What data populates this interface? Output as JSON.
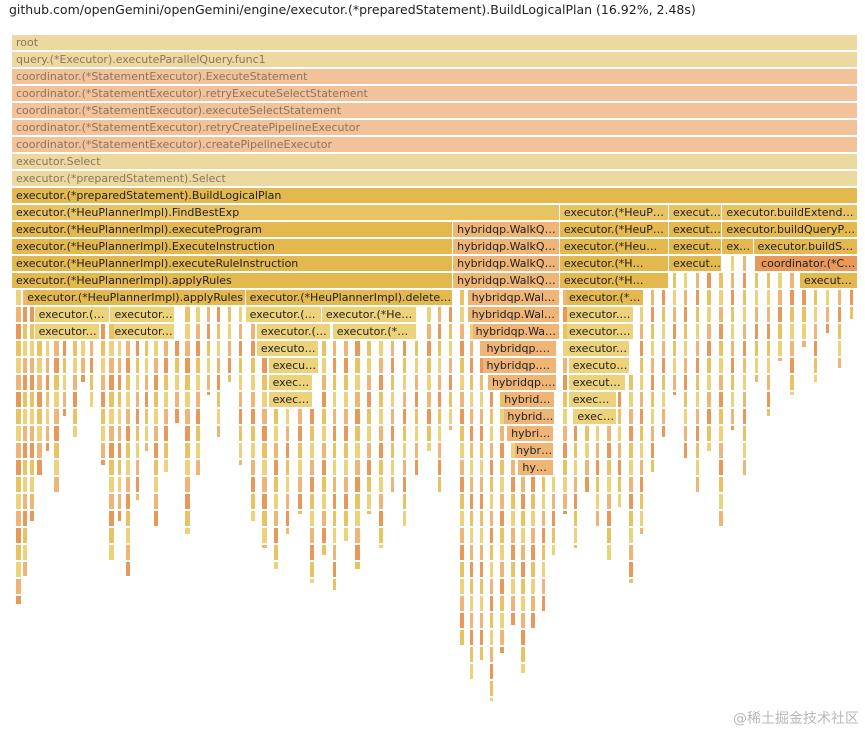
{
  "header": {
    "title": "github.com/openGemini/openGemini/engine/executor.(*preparedStatement).BuildLogicalPlan (16.92%, 2.48s)"
  },
  "colors": {
    "ghost_tan": "#ecd9a0",
    "ghost_salmon": "#f2c29a",
    "gold": "#e3b84f",
    "gold_light": "#e8c364",
    "gold_pale": "#ecd27b",
    "orange": "#e8995a",
    "orange_light": "#efb577",
    "tan": "#e9c079"
  },
  "chart_data": {
    "type": "flamegraph",
    "title": "github.com/openGemini/openGemini/engine/executor.(*preparedStatement).BuildLogicalPlan (16.92%, 2.48s)",
    "total_time": "2.48s",
    "focus_percent": 16.92,
    "units": "fraction of root width",
    "frames": [
      {
        "depth": 0,
        "start": 0,
        "width": 1.0,
        "label": "root",
        "kind": "ghost_tan"
      },
      {
        "depth": 1,
        "start": 0,
        "width": 1.0,
        "label": "query.(*Executor).executeParallelQuery.func1",
        "kind": "ghost_tan"
      },
      {
        "depth": 2,
        "start": 0,
        "width": 1.0,
        "label": "coordinator.(*StatementExecutor).ExecuteStatement",
        "kind": "ghost_salmon"
      },
      {
        "depth": 3,
        "start": 0,
        "width": 1.0,
        "label": "coordinator.(*StatementExecutor).retryExecuteSelectStatement",
        "kind": "ghost_salmon"
      },
      {
        "depth": 4,
        "start": 0,
        "width": 1.0,
        "label": "coordinator.(*StatementExecutor).executeSelectStatement",
        "kind": "ghost_salmon"
      },
      {
        "depth": 5,
        "start": 0,
        "width": 1.0,
        "label": "coordinator.(*StatementExecutor).retryCreatePipelineExecutor",
        "kind": "ghost_salmon"
      },
      {
        "depth": 6,
        "start": 0,
        "width": 1.0,
        "label": "coordinator.(*StatementExecutor).createPipelineExecutor",
        "kind": "ghost_salmon"
      },
      {
        "depth": 7,
        "start": 0,
        "width": 1.0,
        "label": "executor.Select",
        "kind": "ghost_tan"
      },
      {
        "depth": 8,
        "start": 0,
        "width": 1.0,
        "label": "executor.(*preparedStatement).Select",
        "kind": "ghost_tan"
      },
      {
        "depth": 9,
        "start": 0,
        "width": 1.0,
        "label": "executor.(*preparedStatement).BuildLogicalPlan",
        "kind": "gold"
      },
      {
        "depth": 10,
        "start": 0.0,
        "width": 0.6476,
        "label": "executor.(*HeuPlannerImpl).FindBestExp",
        "kind": "gold_light"
      },
      {
        "depth": 10,
        "start": 0.6476,
        "width": 0.129,
        "label": "executor.(*HeuP…",
        "kind": "gold_light"
      },
      {
        "depth": 10,
        "start": 0.7766,
        "width": 0.0631,
        "label": "executor.(*HeuPlannerImpl).FindBestExp",
        "kind": "gold_light"
      },
      {
        "depth": 10,
        "start": 0.8397,
        "width": 0.1603,
        "label": "executor.buildExtendedExpr",
        "kind": "gold_light"
      },
      {
        "depth": 11,
        "start": 0.0,
        "width": 0.5214,
        "label": "executor.(*HeuPlannerImpl).executeProgram",
        "kind": "gold"
      },
      {
        "depth": 11,
        "start": 0.5214,
        "width": 0.1262,
        "label": "hybridqp.WalkQueryNodeInPreOrder",
        "kind": "orange_light"
      },
      {
        "depth": 11,
        "start": 0.6476,
        "width": 0.129,
        "label": "executor.(*HeuP…",
        "kind": "gold"
      },
      {
        "depth": 11,
        "start": 0.7766,
        "width": 0.0631,
        "label": "executor.(*HeuPlannerImpl).executeProgram",
        "kind": "gold"
      },
      {
        "depth": 11,
        "start": 0.8397,
        "width": 0.1603,
        "label": "executor.buildQueryPlan",
        "kind": "gold"
      },
      {
        "depth": 12,
        "start": 0.0,
        "width": 0.5214,
        "label": "executor.(*HeuPlannerImpl).ExecuteInstruction",
        "kind": "gold"
      },
      {
        "depth": 12,
        "start": 0.5214,
        "width": 0.1262,
        "label": "hybridqp.WalkQueryNodeInPreOrder",
        "kind": "orange_light"
      },
      {
        "depth": 12,
        "start": 0.6476,
        "width": 0.129,
        "label": "executor.(*Heu…",
        "kind": "gold"
      },
      {
        "depth": 12,
        "start": 0.7766,
        "width": 0.0631,
        "label": "executor.(*HeuPlannerImpl).ExecuteInstruction",
        "kind": "gold"
      },
      {
        "depth": 12,
        "start": 0.8397,
        "width": 0.0368,
        "label": "executor.buildSources",
        "kind": "gold"
      },
      {
        "depth": 12,
        "start": 0.8765,
        "width": 0.1235,
        "label": "executor.buildSources",
        "kind": "gold"
      },
      {
        "depth": 13,
        "start": 0.0,
        "width": 0.5214,
        "label": "executor.(*HeuPlannerImpl).executeRuleInstruction",
        "kind": "gold"
      },
      {
        "depth": 13,
        "start": 0.5214,
        "width": 0.1262,
        "label": "hybridqp.WalkQueryNodeInPreOrder",
        "kind": "orange_light"
      },
      {
        "depth": 13,
        "start": 0.6476,
        "width": 0.129,
        "label": "executor.(*H…",
        "kind": "gold"
      },
      {
        "depth": 13,
        "start": 0.7766,
        "width": 0.0631,
        "label": "executor.(*HeuPlannerImpl).executeRuleInstruction",
        "kind": "gold"
      },
      {
        "depth": 13,
        "start": 0.8807,
        "width": 0.1193,
        "label": "coordinator.(*ClusterShardMapper).MapShards",
        "kind": "orange"
      },
      {
        "depth": 14,
        "start": 0.0,
        "width": 0.5214,
        "label": "executor.(*HeuPlannerImpl).applyRules",
        "kind": "gold"
      },
      {
        "depth": 14,
        "start": 0.5214,
        "width": 0.1262,
        "label": "hybridqp.WalkQueryNodeInPreOrder",
        "kind": "orange_light"
      },
      {
        "depth": 14,
        "start": 0.6476,
        "width": 0.129,
        "label": "executor.(*H…",
        "kind": "gold"
      },
      {
        "depth": 14,
        "start": 0.9315,
        "width": 0.0685,
        "label": "executor.buildSources",
        "kind": "gold"
      },
      {
        "depth": 15,
        "start": 0.0133,
        "width": 0.2629,
        "label": "executor.(*HeuPlannerImpl).applyRules",
        "kind": "gold"
      },
      {
        "depth": 15,
        "start": 0.2762,
        "width": 0.2452,
        "label": "executor.(*HeuPlannerImpl).deleteNode",
        "kind": "gold"
      },
      {
        "depth": 15,
        "start": 0.5385,
        "width": 0.1091,
        "label": "hybridqp.WalkQueryNodeInPreOrder",
        "kind": "orange_light"
      },
      {
        "depth": 15,
        "start": 0.6536,
        "width": 0.094,
        "label": "executor.(*…",
        "kind": "gold"
      },
      {
        "depth": 16,
        "start": 0.0267,
        "width": 0.0897,
        "label": "executor.(*HeuPlannerImpl).applyRules",
        "kind": "gold_pale"
      },
      {
        "depth": 16,
        "start": 0.1164,
        "width": 0.0768,
        "label": "executor.(*HeuPlannerImpl).applyRules",
        "kind": "gold_pale"
      },
      {
        "depth": 16,
        "start": 0.2762,
        "width": 0.0901,
        "label": "executor.(*HeuPlannerImpl).deleteNode",
        "kind": "gold_pale"
      },
      {
        "depth": 16,
        "start": 0.3663,
        "width": 0.1122,
        "label": "executor.(*HeuPlannerImpl).deleteNode",
        "kind": "gold_pale"
      },
      {
        "depth": 16,
        "start": 0.5385,
        "width": 0.1091,
        "label": "hybridqp.WalkQueryNodeInPreOrder",
        "kind": "orange_light"
      },
      {
        "depth": 16,
        "start": 0.6536,
        "width": 0.0812,
        "label": "executor.(*…",
        "kind": "gold_pale"
      },
      {
        "depth": 17,
        "start": 0.0267,
        "width": 0.0768,
        "label": "executor.(*HeuPlannerImpl).applyRules",
        "kind": "gold_pale"
      },
      {
        "depth": 17,
        "start": 0.1164,
        "width": 0.0768,
        "label": "executor.(*HeuPlannerImpl).applyRules",
        "kind": "gold_pale"
      },
      {
        "depth": 17,
        "start": 0.2895,
        "width": 0.0877,
        "label": "executor.(*HeuPlannerImpl).deleteNode",
        "kind": "gold_pale"
      },
      {
        "depth": 17,
        "start": 0.3792,
        "width": 0.0996,
        "label": "executor.(*HeuPlannerImpl).deleteNode",
        "kind": "gold_pale"
      },
      {
        "depth": 17,
        "start": 0.5433,
        "width": 0.1043,
        "label": "hybridqp.WalkQueryNodeInPreOrder",
        "kind": "orange_light"
      },
      {
        "depth": 17,
        "start": 0.6536,
        "width": 0.0812,
        "label": "executor.(*HeuPlannerImpl).applyRules",
        "kind": "gold_pale"
      },
      {
        "depth": 18,
        "start": 0.2895,
        "width": 0.0738,
        "label": "executor.(*HeuPlannerImpl).deleteNode",
        "kind": "gold_pale"
      },
      {
        "depth": 18,
        "start": 0.5561,
        "width": 0.0884,
        "label": "hybridqp.WalkQueryNodeInPreOrder",
        "kind": "orange_light"
      },
      {
        "depth": 18,
        "start": 0.6536,
        "width": 0.0767,
        "label": "executor.(*HeuPlannerImpl).applyRules",
        "kind": "gold_pale"
      },
      {
        "depth": 19,
        "start": 0.3033,
        "width": 0.06,
        "label": "executor.(*HeuPlannerImpl).deleteNode",
        "kind": "gold_pale"
      },
      {
        "depth": 19,
        "start": 0.5561,
        "width": 0.0884,
        "label": "hybridqp.WalkQueryNodeInPreOrder",
        "kind": "orange_light"
      },
      {
        "depth": 19,
        "start": 0.6581,
        "width": 0.0722,
        "label": "executor.(*HeuPlannerImpl).applyRules",
        "kind": "gold_pale"
      },
      {
        "depth": 20,
        "start": 0.3033,
        "width": 0.052,
        "label": "executor.(*HeuPlannerImpl).deleteNode",
        "kind": "gold_pale"
      },
      {
        "depth": 20,
        "start": 0.5626,
        "width": 0.0819,
        "label": "hybridqp.WalkQueryNodeInPreOrder",
        "kind": "orange_light"
      },
      {
        "depth": 20,
        "start": 0.6581,
        "width": 0.068,
        "label": "executor.(*HeuPlannerImpl).applyRules",
        "kind": "gold_pale"
      },
      {
        "depth": 21,
        "start": 0.3033,
        "width": 0.052,
        "label": "executor.(*HeuPlannerImpl).deleteNode",
        "kind": "gold_pale"
      },
      {
        "depth": 21,
        "start": 0.5772,
        "width": 0.0645,
        "label": "hybridqp.WalkQueryNodeInPreOrder",
        "kind": "orange_light"
      },
      {
        "depth": 21,
        "start": 0.6581,
        "width": 0.057,
        "label": "executor.(*HeuPlannerImpl).applyRules",
        "kind": "gold_pale"
      },
      {
        "depth": 22,
        "start": 0.5808,
        "width": 0.0609,
        "label": "hybridqp.WalkQueryNodeInPreOrder",
        "kind": "orange_light"
      },
      {
        "depth": 22,
        "start": 0.6636,
        "width": 0.0515,
        "label": "executor.(*HeuPlannerImpl).applyRules",
        "kind": "gold_pale"
      },
      {
        "depth": 23,
        "start": 0.5853,
        "width": 0.0555,
        "label": "hybridqp.WalkQueryNodeInPreOrder",
        "kind": "orange_light"
      },
      {
        "depth": 24,
        "start": 0.5911,
        "width": 0.0497,
        "label": "hybridqp.WalkQueryNodeInPreOrder",
        "kind": "orange_light"
      },
      {
        "depth": 25,
        "start": 0.5986,
        "width": 0.0422,
        "label": "hybridqp.WalkQueryNodeInPreOrder",
        "kind": "orange_light"
      }
    ],
    "stub_columns": [
      {
        "x": 0.005,
        "bottom": 0.82,
        "w": 0.006
      },
      {
        "x": 0.013,
        "bottom": 0.78,
        "w": 0.005
      },
      {
        "x": 0.021,
        "bottom": 0.7,
        "w": 0.005
      },
      {
        "x": 0.03,
        "bottom": 0.64,
        "w": 0.005
      },
      {
        "x": 0.04,
        "bottom": 0.6,
        "w": 0.004
      },
      {
        "x": 0.05,
        "bottom": 0.66,
        "w": 0.005
      },
      {
        "x": 0.06,
        "bottom": 0.55,
        "w": 0.004
      },
      {
        "x": 0.072,
        "bottom": 0.58,
        "w": 0.005
      },
      {
        "x": 0.082,
        "bottom": 0.5,
        "w": 0.004
      },
      {
        "x": 0.092,
        "bottom": 0.54,
        "w": 0.004
      },
      {
        "x": 0.105,
        "bottom": 0.62,
        "w": 0.005
      },
      {
        "x": 0.115,
        "bottom": 0.76,
        "w": 0.005
      },
      {
        "x": 0.125,
        "bottom": 0.7,
        "w": 0.004
      },
      {
        "x": 0.135,
        "bottom": 0.78,
        "w": 0.005
      },
      {
        "x": 0.146,
        "bottom": 0.67,
        "w": 0.004
      },
      {
        "x": 0.157,
        "bottom": 0.6,
        "w": 0.004
      },
      {
        "x": 0.168,
        "bottom": 0.71,
        "w": 0.005
      },
      {
        "x": 0.18,
        "bottom": 0.63,
        "w": 0.004
      },
      {
        "x": 0.193,
        "bottom": 0.56,
        "w": 0.004
      },
      {
        "x": 0.205,
        "bottom": 0.72,
        "w": 0.005
      },
      {
        "x": 0.218,
        "bottom": 0.64,
        "w": 0.004
      },
      {
        "x": 0.23,
        "bottom": 0.52,
        "w": 0.004
      },
      {
        "x": 0.242,
        "bottom": 0.58,
        "w": 0.004
      },
      {
        "x": 0.255,
        "bottom": 0.5,
        "w": 0.004
      },
      {
        "x": 0.268,
        "bottom": 0.62,
        "w": 0.004
      },
      {
        "x": 0.282,
        "bottom": 0.7,
        "w": 0.005
      },
      {
        "x": 0.296,
        "bottom": 0.74,
        "w": 0.005
      },
      {
        "x": 0.31,
        "bottom": 0.77,
        "w": 0.005
      },
      {
        "x": 0.324,
        "bottom": 0.72,
        "w": 0.004
      },
      {
        "x": 0.338,
        "bottom": 0.69,
        "w": 0.005
      },
      {
        "x": 0.352,
        "bottom": 0.79,
        "w": 0.005
      },
      {
        "x": 0.366,
        "bottom": 0.75,
        "w": 0.005
      },
      {
        "x": 0.379,
        "bottom": 0.8,
        "w": 0.004
      },
      {
        "x": 0.392,
        "bottom": 0.73,
        "w": 0.005
      },
      {
        "x": 0.406,
        "bottom": 0.77,
        "w": 0.005
      },
      {
        "x": 0.42,
        "bottom": 0.69,
        "w": 0.004
      },
      {
        "x": 0.434,
        "bottom": 0.74,
        "w": 0.005
      },
      {
        "x": 0.448,
        "bottom": 0.66,
        "w": 0.004
      },
      {
        "x": 0.462,
        "bottom": 0.71,
        "w": 0.004
      },
      {
        "x": 0.476,
        "bottom": 0.64,
        "w": 0.004
      },
      {
        "x": 0.49,
        "bottom": 0.6,
        "w": 0.005
      },
      {
        "x": 0.503,
        "bottom": 0.66,
        "w": 0.004
      },
      {
        "x": 0.516,
        "bottom": 0.57,
        "w": 0.004
      },
      {
        "x": 0.53,
        "bottom": 0.88,
        "w": 0.004
      },
      {
        "x": 0.541,
        "bottom": 0.93,
        "w": 0.004
      },
      {
        "x": 0.553,
        "bottom": 0.9,
        "w": 0.004
      },
      {
        "x": 0.565,
        "bottom": 0.96,
        "w": 0.004
      },
      {
        "x": 0.577,
        "bottom": 0.89,
        "w": 0.004
      },
      {
        "x": 0.59,
        "bottom": 0.85,
        "w": 0.004
      },
      {
        "x": 0.602,
        "bottom": 0.92,
        "w": 0.004
      },
      {
        "x": 0.614,
        "bottom": 0.86,
        "w": 0.004
      },
      {
        "x": 0.626,
        "bottom": 0.83,
        "w": 0.004
      },
      {
        "x": 0.638,
        "bottom": 0.75,
        "w": 0.004
      },
      {
        "x": 0.651,
        "bottom": 0.69,
        "w": 0.005
      },
      {
        "x": 0.664,
        "bottom": 0.74,
        "w": 0.004
      },
      {
        "x": 0.677,
        "bottom": 0.66,
        "w": 0.005
      },
      {
        "x": 0.69,
        "bottom": 0.71,
        "w": 0.004
      },
      {
        "x": 0.703,
        "bottom": 0.76,
        "w": 0.005
      },
      {
        "x": 0.716,
        "bottom": 0.68,
        "w": 0.004
      },
      {
        "x": 0.729,
        "bottom": 0.79,
        "w": 0.005
      },
      {
        "x": 0.742,
        "bottom": 0.72,
        "w": 0.004
      },
      {
        "x": 0.755,
        "bottom": 0.63,
        "w": 0.004
      },
      {
        "x": 0.768,
        "bottom": 0.58,
        "w": 0.004
      },
      {
        "x": 0.781,
        "bottom": 0.52,
        "w": 0.004
      },
      {
        "x": 0.794,
        "bottom": 0.61,
        "w": 0.004
      },
      {
        "x": 0.808,
        "bottom": 0.66,
        "w": 0.004
      },
      {
        "x": 0.822,
        "bottom": 0.6,
        "w": 0.004
      },
      {
        "x": 0.836,
        "bottom": 0.71,
        "w": 0.005
      },
      {
        "x": 0.85,
        "bottom": 0.57,
        "w": 0.004
      },
      {
        "x": 0.864,
        "bottom": 0.64,
        "w": 0.004
      },
      {
        "x": 0.878,
        "bottom": 0.5,
        "w": 0.004
      },
      {
        "x": 0.892,
        "bottom": 0.55,
        "w": 0.004
      },
      {
        "x": 0.906,
        "bottom": 0.47,
        "w": 0.004
      },
      {
        "x": 0.92,
        "bottom": 0.52,
        "w": 0.004
      },
      {
        "x": 0.934,
        "bottom": 0.45,
        "w": 0.004
      },
      {
        "x": 0.948,
        "bottom": 0.5,
        "w": 0.004
      },
      {
        "x": 0.962,
        "bottom": 0.43,
        "w": 0.004
      },
      {
        "x": 0.976,
        "bottom": 0.48,
        "w": 0.004
      },
      {
        "x": 0.99,
        "bottom": 0.41,
        "w": 0.004
      }
    ]
  },
  "watermark": "@稀土掘金技术社区"
}
